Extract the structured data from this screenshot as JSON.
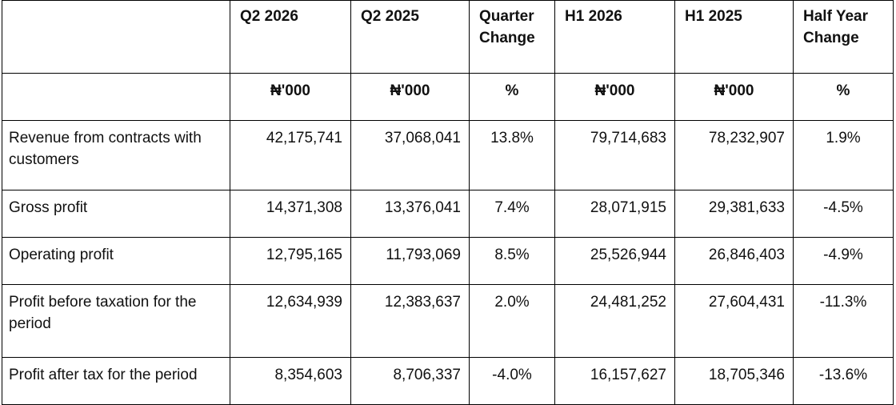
{
  "table": {
    "headers": {
      "label": "",
      "q2_2026": "Q2 2026",
      "q2_2025": "Q2 2025",
      "quarter_change": "Quarter Change",
      "h1_2026": "H1 2026",
      "h1_2025": "H1 2025",
      "half_year_change": "Half Year Change"
    },
    "units": {
      "q2_2026": "₦'000",
      "q2_2025": "₦'000",
      "quarter_change": "%",
      "h1_2026": "₦'000",
      "h1_2025": "₦'000",
      "half_year_change": "%"
    },
    "rows": [
      {
        "label": "Revenue from contracts with customers",
        "q2_2026": "42,175,741",
        "q2_2025": "37,068,041",
        "quarter_change": "13.8%",
        "h1_2026": "79,714,683",
        "h1_2025": "78,232,907",
        "half_year_change": "1.9%"
      },
      {
        "label": "Gross profit",
        "q2_2026": "14,371,308",
        "q2_2025": "13,376,041",
        "quarter_change": "7.4%",
        "h1_2026": "28,071,915",
        "h1_2025": "29,381,633",
        "half_year_change": "-4.5%"
      },
      {
        "label": "Operating profit",
        "q2_2026": "12,795,165",
        "q2_2025": "11,793,069",
        "quarter_change": "8.5%",
        "h1_2026": "25,526,944",
        "h1_2025": "26,846,403",
        "half_year_change": "-4.9%"
      },
      {
        "label": "Profit before taxation for the period",
        "q2_2026": "12,634,939",
        "q2_2025": "12,383,637",
        "quarter_change": "2.0%",
        "h1_2026": "24,481,252",
        "h1_2025": "27,604,431",
        "half_year_change": "-11.3%"
      },
      {
        "label": "Profit after tax for the period",
        "q2_2026": "8,354,603",
        "q2_2025": "8,706,337",
        "quarter_change": "-4.0%",
        "h1_2026": "16,157,627",
        "h1_2025": "18,705,346",
        "half_year_change": "-13.6%"
      }
    ]
  }
}
